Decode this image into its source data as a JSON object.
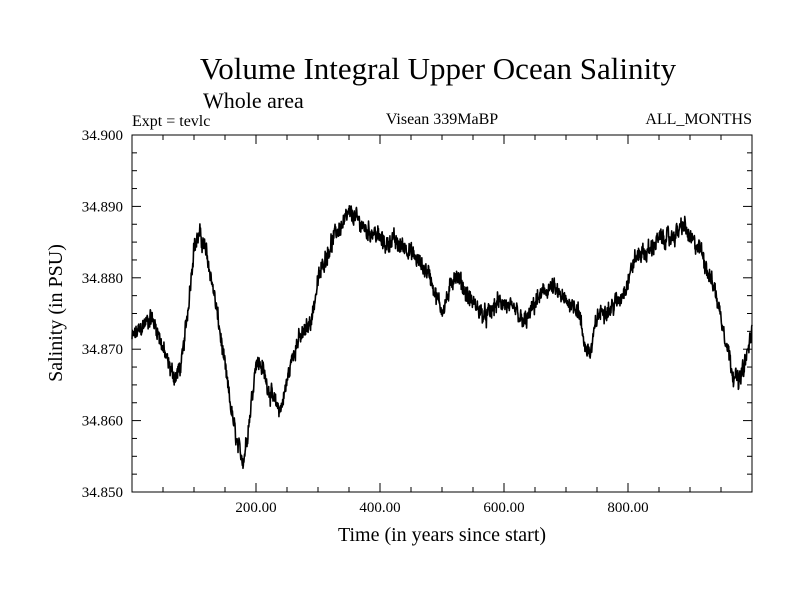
{
  "chart_data": {
    "type": "line",
    "title": "Volume Integral Upper Ocean Salinity",
    "subtitle": "Whole area",
    "annotations": {
      "left": "Expt = tevlc",
      "center": "Visean 339MaBP",
      "right": "ALL_MONTHS"
    },
    "xlabel": "Time (in years since start)",
    "ylabel": "Salinity (in PSU)",
    "xlim": [
      0,
      1000
    ],
    "ylim": [
      34.85,
      34.9
    ],
    "x_ticks": [
      200,
      400,
      600,
      800
    ],
    "x_tick_labels": [
      "200.00",
      "400.00",
      "600.00",
      "800.00"
    ],
    "y_ticks": [
      34.85,
      34.86,
      34.87,
      34.88,
      34.89,
      34.9
    ],
    "y_tick_labels": [
      "34.850",
      "34.860",
      "34.870",
      "34.880",
      "34.890",
      "34.900"
    ],
    "grid": false,
    "series": [
      {
        "name": "Volume integral upper ocean salinity",
        "color": "#000000",
        "anchors_x": [
          0,
          10,
          20,
          30,
          40,
          50,
          60,
          70,
          80,
          90,
          100,
          110,
          120,
          130,
          140,
          150,
          160,
          170,
          180,
          190,
          200,
          210,
          220,
          230,
          240,
          250,
          260,
          270,
          280,
          290,
          300,
          310,
          320,
          330,
          340,
          350,
          360,
          370,
          380,
          390,
          400,
          410,
          420,
          430,
          440,
          450,
          460,
          470,
          480,
          490,
          500,
          510,
          520,
          530,
          540,
          550,
          560,
          570,
          580,
          590,
          600,
          610,
          620,
          630,
          640,
          650,
          660,
          670,
          680,
          690,
          700,
          710,
          720,
          730,
          740,
          750,
          760,
          770,
          780,
          790,
          800,
          810,
          820,
          830,
          840,
          850,
          860,
          870,
          880,
          890,
          900,
          910,
          920,
          930,
          940,
          950,
          960,
          970,
          980,
          990,
          1000
        ],
        "anchors_y": [
          34.8715,
          34.8725,
          34.8735,
          34.8745,
          34.873,
          34.87,
          34.8675,
          34.866,
          34.868,
          34.8755,
          34.8845,
          34.886,
          34.8835,
          34.879,
          34.8735,
          34.8675,
          34.8615,
          34.8565,
          34.8545,
          34.8605,
          34.8685,
          34.8675,
          34.8645,
          34.8625,
          34.8615,
          34.8655,
          34.8695,
          34.8715,
          34.8725,
          34.8745,
          34.8795,
          34.8825,
          34.8845,
          34.8865,
          34.8875,
          34.889,
          34.8885,
          34.8875,
          34.8865,
          34.8865,
          34.8855,
          34.8845,
          34.8855,
          34.8845,
          34.8845,
          34.8835,
          34.8825,
          34.8815,
          34.8805,
          34.8775,
          34.8755,
          34.8775,
          34.8805,
          34.8795,
          34.8775,
          34.8765,
          34.8755,
          34.8745,
          34.8755,
          34.8765,
          34.8765,
          34.8755,
          34.8755,
          34.8735,
          34.8745,
          34.8765,
          34.8775,
          34.8785,
          34.8785,
          34.8775,
          34.8765,
          34.8765,
          34.8755,
          34.8705,
          34.8695,
          34.8745,
          34.8755,
          34.8755,
          34.8765,
          34.8775,
          34.8795,
          34.8825,
          34.8835,
          34.8835,
          34.8845,
          34.8855,
          34.8855,
          34.8855,
          34.8865,
          34.8875,
          34.8855,
          34.8845,
          34.8835,
          34.8805,
          34.8785,
          34.8745,
          34.8705,
          34.8665,
          34.8655,
          34.8685,
          34.8725
        ]
      }
    ]
  }
}
